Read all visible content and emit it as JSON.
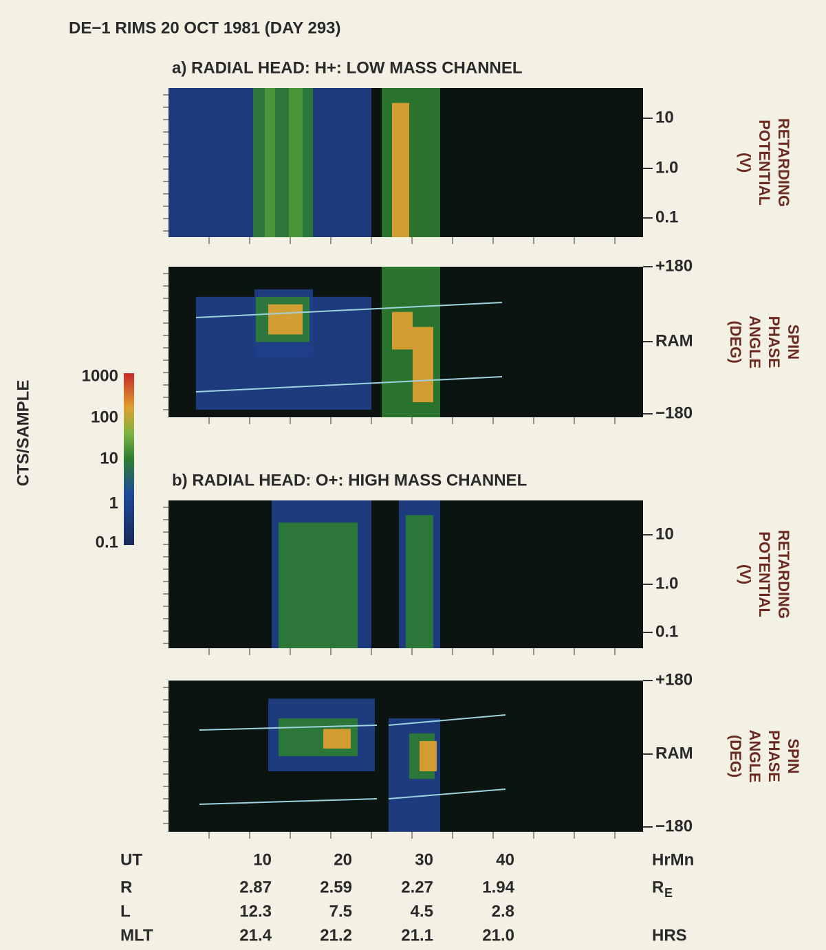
{
  "title": "DE−1 RIMS 20 OCT 1981 (DAY 293)",
  "sections": [
    {
      "heading": "a)  RADIAL HEAD:  H+:  LOW MASS CHANNEL",
      "plots": [
        {
          "yticks": [
            "10",
            "1.0",
            "0.1"
          ],
          "ylabel": [
            "RETARDING",
            "POTENTIAL",
            "(V)"
          ]
        },
        {
          "yticks": [
            "+180",
            "RAM",
            "−180"
          ],
          "ylabel": [
            "SPIN",
            "PHASE",
            "ANGLE",
            "(DEG)"
          ]
        }
      ]
    },
    {
      "heading": "b)  RADIAL HEAD:  O+:  HIGH MASS CHANNEL",
      "plots": [
        {
          "yticks": [
            "10",
            "1.0",
            "0.1"
          ],
          "ylabel": [
            "RETARDING",
            "POTENTIAL",
            "(V)"
          ]
        },
        {
          "yticks": [
            "+180",
            "RAM",
            "−180"
          ],
          "ylabel": [
            "SPIN",
            "PHASE",
            "ANGLE",
            "(DEG)"
          ]
        }
      ]
    }
  ],
  "colorbar": {
    "label": "CTS/SAMPLE",
    "ticks": [
      "1000",
      "100",
      "10",
      "1",
      "0.1"
    ]
  },
  "x_table": {
    "rows": [
      {
        "name": "UT",
        "values": [
          "10",
          "20",
          "30",
          "40"
        ],
        "unit": "HrMn"
      },
      {
        "name": "R",
        "values": [
          "2.87",
          "2.59",
          "2.27",
          "1.94"
        ],
        "unit": "R",
        "unit_sub": "E"
      },
      {
        "name": "L",
        "values": [
          "12.3",
          "7.5",
          "4.5",
          "2.8"
        ]
      },
      {
        "name": "MLT",
        "values": [
          "21.4",
          "21.2",
          "21.1",
          "21.0"
        ],
        "unit": "HRS"
      }
    ]
  }
}
